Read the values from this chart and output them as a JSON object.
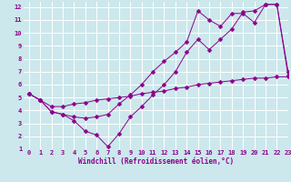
{
  "line1": {
    "x": [
      0,
      1,
      2,
      3,
      4,
      5,
      6,
      7,
      8,
      9,
      10,
      11,
      12,
      13,
      14,
      15,
      16,
      17,
      18,
      19,
      20,
      21,
      22,
      23
    ],
    "y": [
      5.3,
      4.8,
      3.9,
      3.7,
      3.2,
      2.4,
      2.1,
      1.2,
      2.2,
      3.5,
      4.3,
      5.2,
      6.0,
      7.0,
      8.5,
      9.5,
      8.7,
      9.5,
      10.3,
      11.6,
      11.7,
      12.2,
      12.2,
      7.0
    ],
    "color": "#8b008b",
    "marker": "D",
    "markersize": 2.5
  },
  "line2": {
    "x": [
      0,
      1,
      2,
      3,
      4,
      5,
      6,
      7,
      8,
      9,
      10,
      11,
      12,
      13,
      14,
      15,
      16,
      17,
      18,
      19,
      20,
      21,
      22,
      23
    ],
    "y": [
      5.3,
      4.8,
      3.9,
      3.7,
      3.5,
      3.4,
      3.5,
      3.7,
      4.5,
      5.2,
      6.0,
      7.0,
      7.8,
      8.5,
      9.3,
      11.7,
      11.0,
      10.5,
      11.5,
      11.5,
      10.8,
      12.2,
      12.2,
      6.7
    ],
    "color": "#8b008b",
    "marker": "D",
    "markersize": 2.5
  },
  "line3": {
    "x": [
      0,
      1,
      2,
      3,
      4,
      5,
      6,
      7,
      8,
      9,
      10,
      11,
      12,
      13,
      14,
      15,
      16,
      17,
      18,
      19,
      20,
      21,
      22,
      23
    ],
    "y": [
      5.3,
      4.8,
      4.3,
      4.3,
      4.5,
      4.6,
      4.8,
      4.9,
      5.0,
      5.1,
      5.3,
      5.4,
      5.5,
      5.7,
      5.8,
      6.0,
      6.1,
      6.2,
      6.3,
      6.4,
      6.5,
      6.5,
      6.6,
      6.6
    ],
    "color": "#8b008b",
    "marker": "D",
    "markersize": 2.5
  },
  "xlabel": "Windchill (Refroidissement éolien,°C)",
  "xlim": [
    -0.5,
    23
  ],
  "ylim": [
    1,
    12.4
  ],
  "xticks": [
    0,
    1,
    2,
    3,
    4,
    5,
    6,
    7,
    8,
    9,
    10,
    11,
    12,
    13,
    14,
    15,
    16,
    17,
    18,
    19,
    20,
    21,
    22,
    23
  ],
  "yticks": [
    1,
    2,
    3,
    4,
    5,
    6,
    7,
    8,
    9,
    10,
    11,
    12
  ],
  "bg_color": "#cce8ec",
  "line_color": "#8b008b",
  "grid_color": "#b0d4d8",
  "xlabel_fontsize": 5.5,
  "tick_fontsize": 5
}
